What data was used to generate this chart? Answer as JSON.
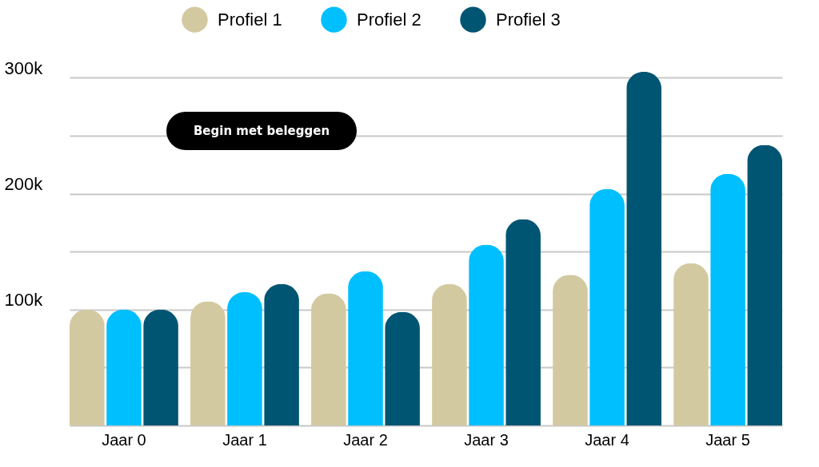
{
  "chart_data": {
    "type": "bar",
    "categories": [
      "Jaar 0",
      "Jaar 1",
      "Jaar 2",
      "Jaar 3",
      "Jaar 4",
      "Jaar 5"
    ],
    "series": [
      {
        "name": "Profiel 1",
        "color": "#d3c9a1",
        "values": [
          100000,
          107000,
          114000,
          122000,
          130000,
          140000
        ]
      },
      {
        "name": "Profiel 2",
        "color": "#00bfff",
        "values": [
          100000,
          115000,
          133000,
          156000,
          204000,
          217000
        ]
      },
      {
        "name": "Profiel 3",
        "color": "#005573",
        "values": [
          100000,
          122000,
          98000,
          178000,
          305000,
          242000
        ]
      }
    ],
    "ylim": [
      0,
      305000
    ],
    "yticks": [
      {
        "value": 0,
        "label": null
      },
      {
        "value": 50000,
        "label": null
      },
      {
        "value": 100000,
        "label": "100k"
      },
      {
        "value": 150000,
        "label": null
      },
      {
        "value": 200000,
        "label": "200k"
      },
      {
        "value": 250000,
        "label": null
      },
      {
        "value": 300000,
        "label": "300k"
      }
    ],
    "grid": "y",
    "legend": "top",
    "annotations": [
      "Begin met beleggen"
    ]
  }
}
